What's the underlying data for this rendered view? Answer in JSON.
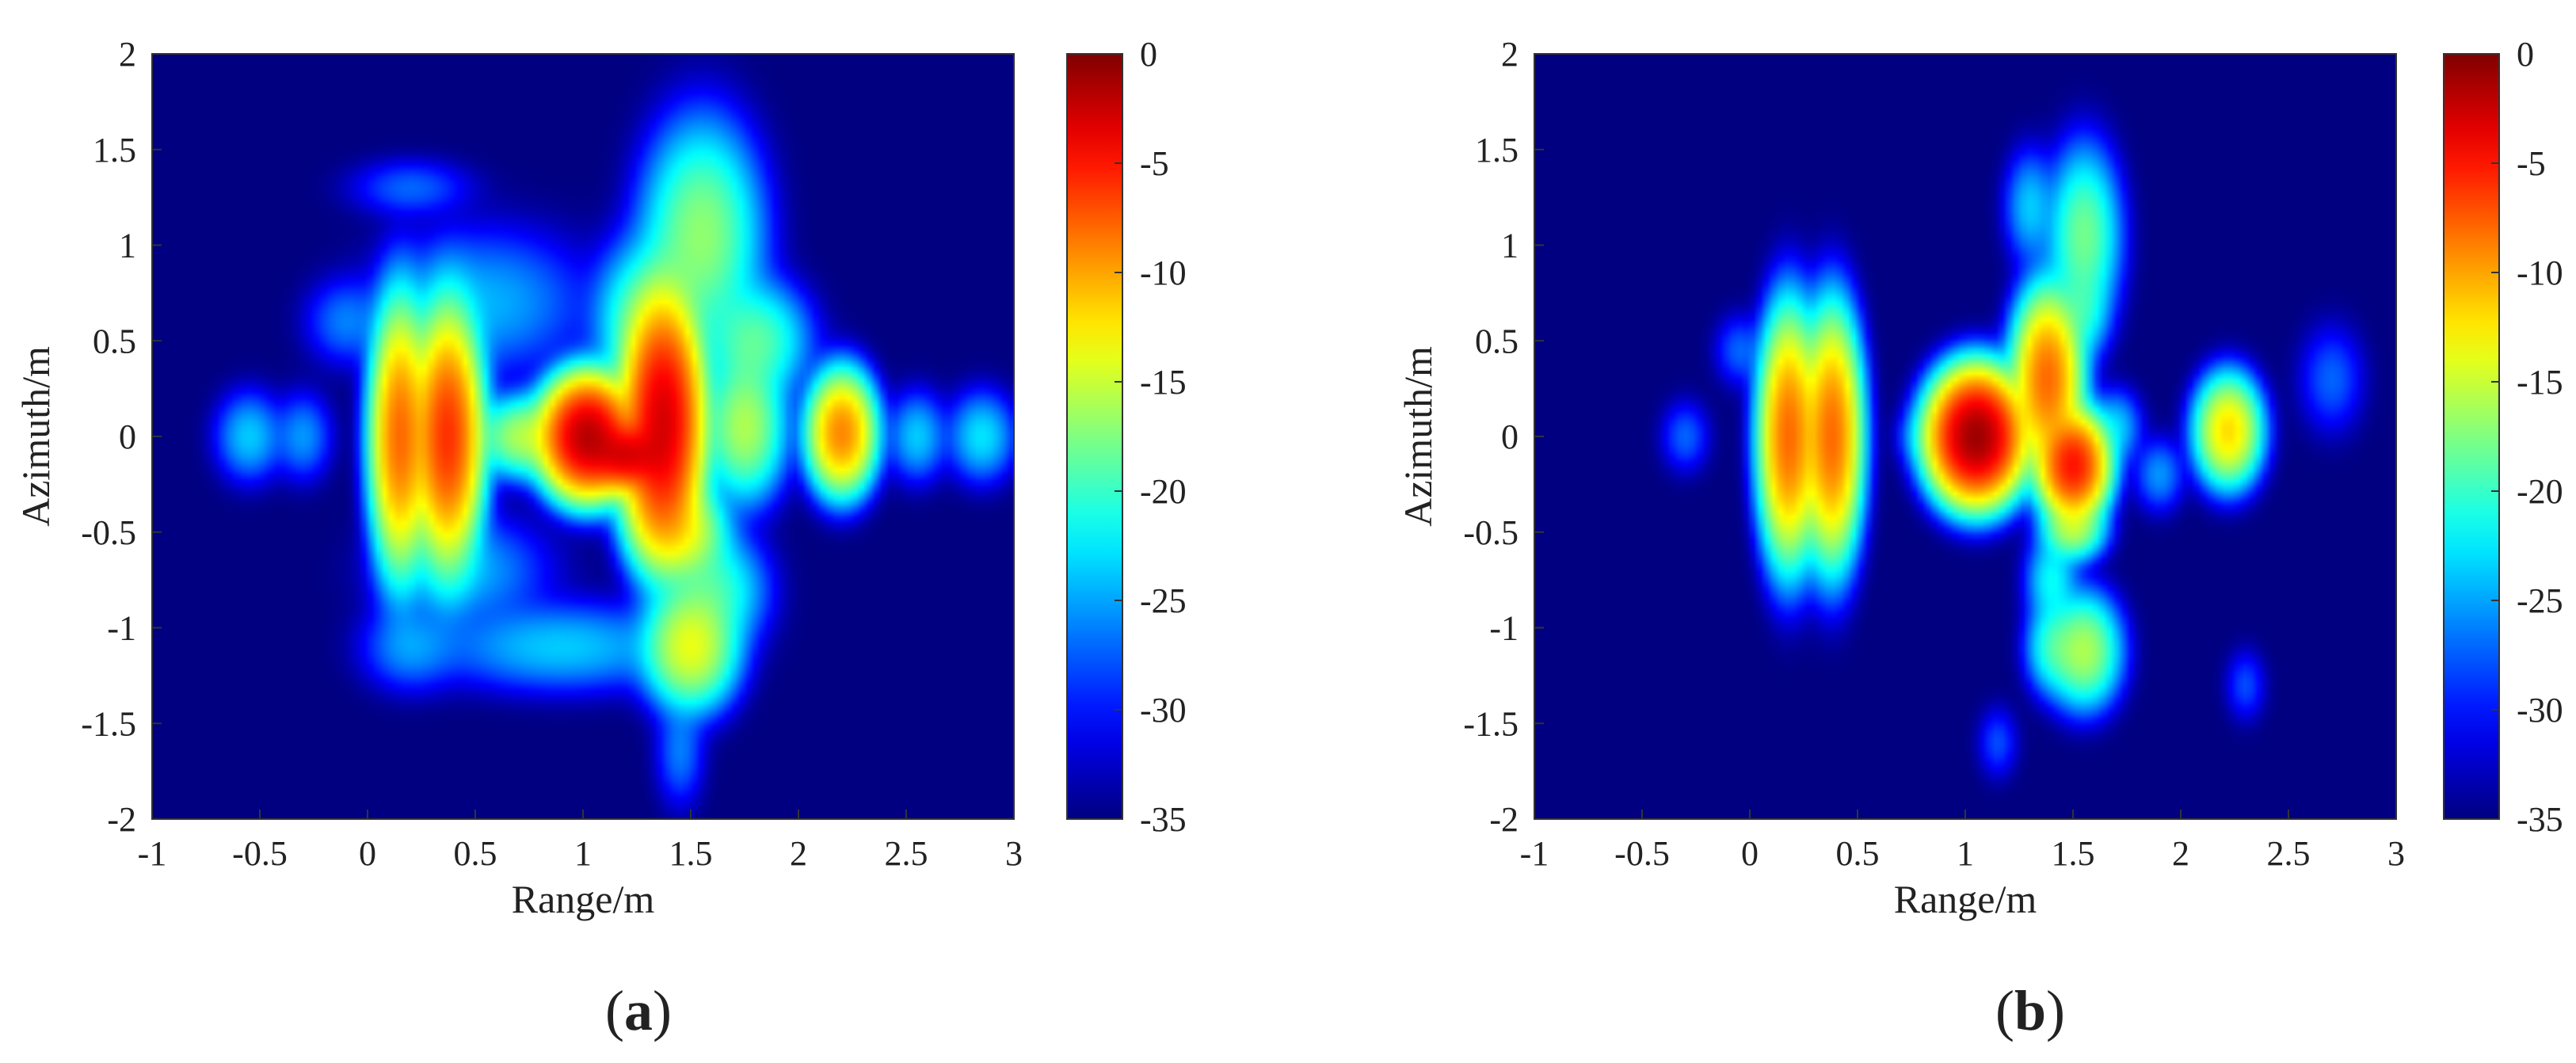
{
  "chart_data": [
    {
      "type": "heatmap",
      "panel_label": "a",
      "xlabel": "Range/m",
      "ylabel": "Azimuth/m",
      "xlim": [
        -1,
        3
      ],
      "ylim": [
        -2,
        2
      ],
      "xticks": [
        -1,
        -0.5,
        0,
        0.5,
        1,
        1.5,
        2,
        2.5,
        3
      ],
      "xtick_labels": [
        "-1",
        "-0.5",
        "0",
        "0.5",
        "1",
        "1.5",
        "2",
        "2.5",
        "3"
      ],
      "yticks": [
        2,
        1.5,
        1,
        0.5,
        0,
        -0.5,
        -1,
        -1.5,
        -2
      ],
      "ytick_labels": [
        "2",
        "1.5",
        "1",
        "0.5",
        "0",
        "-0.5",
        "-1",
        "-1.5",
        "-2"
      ],
      "colorbar": {
        "colormap": "jet",
        "range": [
          -35,
          0
        ],
        "ticks": [
          0,
          -5,
          -10,
          -15,
          -20,
          -25,
          -30,
          -35
        ],
        "tick_labels": [
          "0",
          "-5",
          "-10",
          "-15",
          "-20",
          "-25",
          "-30",
          "-35"
        ]
      },
      "background_db": -35,
      "peaks": [
        {
          "x": 1.02,
          "y": 0.0,
          "db": -2,
          "sx": 0.09,
          "sy": 0.13
        },
        {
          "x": 1.37,
          "y": 0.08,
          "db": -3,
          "sx": 0.08,
          "sy": 0.28
        },
        {
          "x": 1.2,
          "y": -0.1,
          "db": -4,
          "sx": 0.08,
          "sy": 0.08
        },
        {
          "x": 0.37,
          "y": 0.0,
          "db": -6,
          "sx": 0.07,
          "sy": 0.28
        },
        {
          "x": 0.15,
          "y": 0.0,
          "db": -8,
          "sx": 0.06,
          "sy": 0.3
        },
        {
          "x": 2.2,
          "y": 0.02,
          "db": -9,
          "sx": 0.07,
          "sy": 0.14
        },
        {
          "x": 1.75,
          "y": 0.05,
          "db": -16,
          "sx": 0.09,
          "sy": 0.18
        },
        {
          "x": 0.72,
          "y": 0.0,
          "db": -16,
          "sx": 0.1,
          "sy": 0.1
        },
        {
          "x": 1.48,
          "y": -0.5,
          "db": -15,
          "sx": 0.09,
          "sy": 0.12
        },
        {
          "x": 1.5,
          "y": -1.1,
          "db": -14,
          "sx": 0.1,
          "sy": 0.15
        },
        {
          "x": 1.55,
          "y": 1.05,
          "db": -17,
          "sx": 0.13,
          "sy": 0.28
        },
        {
          "x": 1.6,
          "y": -0.8,
          "db": -20,
          "sx": 0.12,
          "sy": 0.15
        },
        {
          "x": 1.8,
          "y": 0.5,
          "db": -19,
          "sx": 0.12,
          "sy": 0.15
        },
        {
          "x": 1.25,
          "y": 0.6,
          "db": -20,
          "sx": 0.1,
          "sy": 0.2
        },
        {
          "x": 0.45,
          "y": -0.7,
          "db": -25,
          "sx": 0.2,
          "sy": 0.15
        },
        {
          "x": 0.55,
          "y": 0.7,
          "db": -25,
          "sx": 0.25,
          "sy": 0.2
        },
        {
          "x": 0.9,
          "y": -1.1,
          "db": -24,
          "sx": 0.3,
          "sy": 0.12
        },
        {
          "x": 0.2,
          "y": -1.1,
          "db": -26,
          "sx": 0.12,
          "sy": 0.12
        },
        {
          "x": -0.55,
          "y": 0.0,
          "db": -24,
          "sx": 0.08,
          "sy": 0.12
        },
        {
          "x": -0.3,
          "y": 0.0,
          "db": -26,
          "sx": 0.07,
          "sy": 0.12
        },
        {
          "x": 2.55,
          "y": 0.0,
          "db": -24,
          "sx": 0.07,
          "sy": 0.12
        },
        {
          "x": 2.85,
          "y": 0.0,
          "db": -23,
          "sx": 0.08,
          "sy": 0.12
        },
        {
          "x": 1.35,
          "y": -0.35,
          "db": -14,
          "sx": 0.08,
          "sy": 0.15
        },
        {
          "x": 1.45,
          "y": -1.65,
          "db": -27,
          "sx": 0.06,
          "sy": 0.15
        },
        {
          "x": 0.2,
          "y": 1.3,
          "db": -28,
          "sx": 0.15,
          "sy": 0.08
        },
        {
          "x": -0.1,
          "y": 0.6,
          "db": -27,
          "sx": 0.1,
          "sy": 0.12
        }
      ]
    },
    {
      "type": "heatmap",
      "panel_label": "b",
      "xlabel": "Range/m",
      "ylabel": "Azimuth/m",
      "xlim": [
        -1,
        3
      ],
      "ylim": [
        -2,
        2
      ],
      "xticks": [
        -1,
        -0.5,
        0,
        0.5,
        1,
        1.5,
        2,
        2.5,
        3
      ],
      "xtick_labels": [
        "-1",
        "-0.5",
        "0",
        "0.5",
        "1",
        "1.5",
        "2",
        "2.5",
        "3"
      ],
      "yticks": [
        2,
        1.5,
        1,
        0.5,
        0,
        -0.5,
        -1,
        -1.5,
        -2
      ],
      "ytick_labels": [
        "2",
        "1.5",
        "1",
        "0.5",
        "0",
        "-0.5",
        "-1",
        "-1.5",
        "-2"
      ],
      "colorbar": {
        "colormap": "jet",
        "range": [
          -35,
          0
        ],
        "ticks": [
          0,
          -5,
          -10,
          -15,
          -20,
          -25,
          -30,
          -35
        ],
        "tick_labels": [
          "0",
          "-5",
          "-10",
          "-15",
          "-20",
          "-25",
          "-30",
          "-35"
        ]
      },
      "background_db": -35,
      "peaks": [
        {
          "x": 1.05,
          "y": 0.0,
          "db": -1,
          "sx": 0.09,
          "sy": 0.14
        },
        {
          "x": 1.5,
          "y": -0.15,
          "db": -5,
          "sx": 0.07,
          "sy": 0.12
        },
        {
          "x": 1.38,
          "y": 0.3,
          "db": -8,
          "sx": 0.07,
          "sy": 0.2
        },
        {
          "x": 0.18,
          "y": 0.0,
          "db": -8,
          "sx": 0.06,
          "sy": 0.28
        },
        {
          "x": 0.38,
          "y": 0.0,
          "db": -8,
          "sx": 0.06,
          "sy": 0.28
        },
        {
          "x": 2.22,
          "y": 0.03,
          "db": -12,
          "sx": 0.07,
          "sy": 0.13
        },
        {
          "x": 1.5,
          "y": -0.48,
          "db": -16,
          "sx": 0.07,
          "sy": 0.08
        },
        {
          "x": 1.55,
          "y": 1.05,
          "db": -18,
          "sx": 0.08,
          "sy": 0.22
        },
        {
          "x": 1.55,
          "y": -1.12,
          "db": -16,
          "sx": 0.08,
          "sy": 0.14
        },
        {
          "x": 1.4,
          "y": -0.75,
          "db": -22,
          "sx": 0.06,
          "sy": 0.12
        },
        {
          "x": 1.4,
          "y": -1.1,
          "db": -21,
          "sx": 0.06,
          "sy": 0.12
        },
        {
          "x": 1.55,
          "y": 0.65,
          "db": -22,
          "sx": 0.06,
          "sy": 0.12
        },
        {
          "x": 1.3,
          "y": 1.2,
          "db": -24,
          "sx": 0.06,
          "sy": 0.15
        },
        {
          "x": 1.7,
          "y": 0.05,
          "db": -24,
          "sx": 0.06,
          "sy": 0.1
        },
        {
          "x": 0.8,
          "y": 0.0,
          "db": -27,
          "sx": 0.06,
          "sy": 0.08
        },
        {
          "x": 2.7,
          "y": 0.3,
          "db": -28,
          "sx": 0.08,
          "sy": 0.15
        },
        {
          "x": -0.3,
          "y": 0.0,
          "db": -28,
          "sx": 0.06,
          "sy": 0.1
        },
        {
          "x": -0.05,
          "y": 0.45,
          "db": -28,
          "sx": 0.06,
          "sy": 0.1
        },
        {
          "x": 1.9,
          "y": -0.2,
          "db": -26,
          "sx": 0.06,
          "sy": 0.1
        },
        {
          "x": 1.15,
          "y": -1.6,
          "db": -29,
          "sx": 0.05,
          "sy": 0.1
        },
        {
          "x": 2.3,
          "y": -1.3,
          "db": -29,
          "sx": 0.05,
          "sy": 0.1
        }
      ]
    }
  ]
}
